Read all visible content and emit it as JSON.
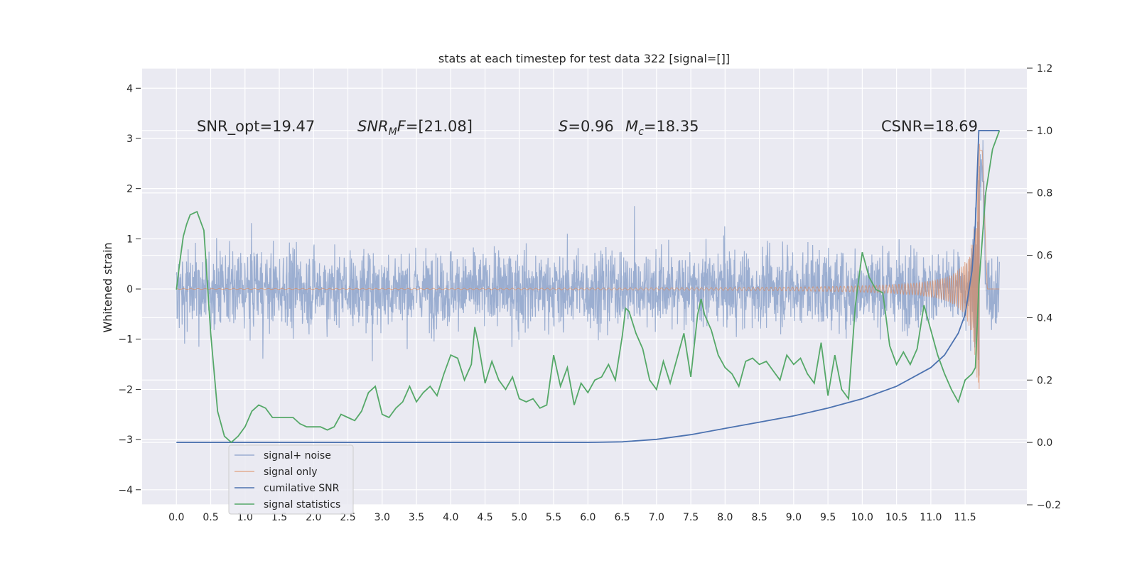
{
  "chart_data": {
    "type": "line",
    "title": "stats at each timestep for test data 322 [signal=[]]",
    "ylabel": "Whitened strain",
    "xlabel": "",
    "xlim": [
      -0.5,
      12.4
    ],
    "ylim": [
      -4.3,
      4.4
    ],
    "y2lim": [
      -0.2,
      1.2
    ],
    "grid": true,
    "legend_position": "lower-left",
    "x_ticks": [
      "0.0",
      "0.5",
      "1.0",
      "1.5",
      "2.0",
      "2.5",
      "3.0",
      "3.5",
      "4.0",
      "4.5",
      "5.0",
      "5.5",
      "6.0",
      "6.5",
      "7.0",
      "7.5",
      "8.0",
      "8.5",
      "9.0",
      "9.5",
      "10.0",
      "10.5",
      "11.0",
      "11.5"
    ],
    "y_ticks": [
      "4",
      "3",
      "2",
      "1",
      "0",
      "−1",
      "−2",
      "−3",
      "−4"
    ],
    "y2_ticks": [
      "1.2",
      "1.0",
      "0.8",
      "0.6",
      "0.4",
      "0.2",
      "0.0",
      "−0.2"
    ],
    "colors": {
      "noise": "#4c72b0",
      "signal": "#dd8452",
      "csnr": "#4c72b0",
      "stats": "#55a868"
    },
    "annotations": [
      {
        "id": "snr-opt",
        "text": "SNR_opt=19.47"
      },
      {
        "id": "snr-mf",
        "text": "=[21.08]",
        "prefix": "SNR",
        "sub": "M",
        "mid": "F"
      },
      {
        "id": "s",
        "text": "=0.96",
        "prefix": "S"
      },
      {
        "id": "mc",
        "text": "=18.35",
        "prefix": "M",
        "sub": "c"
      },
      {
        "id": "csnr",
        "text": "CSNR=18.69"
      }
    ],
    "series": [
      {
        "name": "signal+ noise",
        "color": "#4c72b0",
        "alpha": 0.5,
        "amplitude": 1.4,
        "x_range": [
          0,
          12
        ]
      },
      {
        "name": "signal only",
        "color": "#dd8452",
        "alpha": 0.6,
        "x_range": [
          0,
          12
        ]
      },
      {
        "name": "cumilative SNR",
        "color": "#4c72b0",
        "axis": "right",
        "x": [
          0,
          5,
          6,
          6.5,
          7.0,
          7.5,
          8.0,
          8.5,
          9.0,
          9.5,
          10.0,
          10.5,
          11.0,
          11.2,
          11.4,
          11.5,
          11.6,
          11.65,
          11.7,
          12.0
        ],
        "y": [
          0,
          0,
          0,
          0.002,
          0.01,
          0.025,
          0.045,
          0.065,
          0.085,
          0.11,
          0.14,
          0.18,
          0.24,
          0.28,
          0.35,
          0.41,
          0.55,
          0.7,
          1.0,
          1.0
        ]
      },
      {
        "name": "signal statistics",
        "color": "#55a868",
        "axis": "right",
        "x": [
          0,
          0.05,
          0.1,
          0.15,
          0.2,
          0.3,
          0.4,
          0.5,
          0.6,
          0.7,
          0.8,
          0.9,
          1.0,
          1.1,
          1.2,
          1.3,
          1.4,
          1.5,
          1.6,
          1.7,
          1.8,
          1.9,
          2.0,
          2.1,
          2.2,
          2.3,
          2.4,
          2.5,
          2.6,
          2.7,
          2.8,
          2.9,
          3.0,
          3.1,
          3.2,
          3.3,
          3.4,
          3.5,
          3.6,
          3.7,
          3.8,
          3.9,
          4.0,
          4.1,
          4.2,
          4.3,
          4.35,
          4.4,
          4.5,
          4.6,
          4.7,
          4.8,
          4.9,
          5.0,
          5.1,
          5.2,
          5.3,
          5.4,
          5.5,
          5.6,
          5.7,
          5.8,
          5.9,
          6.0,
          6.1,
          6.2,
          6.3,
          6.4,
          6.5,
          6.55,
          6.6,
          6.7,
          6.8,
          6.9,
          7.0,
          7.1,
          7.2,
          7.3,
          7.4,
          7.5,
          7.6,
          7.65,
          7.7,
          7.8,
          7.9,
          8.0,
          8.1,
          8.2,
          8.3,
          8.4,
          8.5,
          8.6,
          8.7,
          8.8,
          8.9,
          9.0,
          9.1,
          9.2,
          9.3,
          9.4,
          9.5,
          9.6,
          9.7,
          9.8,
          9.9,
          10.0,
          10.1,
          10.2,
          10.3,
          10.4,
          10.5,
          10.6,
          10.7,
          10.8,
          10.9,
          11.0,
          11.1,
          11.2,
          11.3,
          11.4,
          11.5,
          11.6,
          11.65,
          11.7,
          11.8,
          11.9,
          12.0
        ],
        "y": [
          0.49,
          0.58,
          0.66,
          0.7,
          0.73,
          0.74,
          0.68,
          0.35,
          0.1,
          0.02,
          0.0,
          0.02,
          0.05,
          0.1,
          0.12,
          0.11,
          0.08,
          0.08,
          0.08,
          0.08,
          0.06,
          0.05,
          0.05,
          0.05,
          0.04,
          0.05,
          0.09,
          0.08,
          0.07,
          0.1,
          0.16,
          0.18,
          0.09,
          0.08,
          0.11,
          0.13,
          0.18,
          0.13,
          0.16,
          0.18,
          0.15,
          0.22,
          0.28,
          0.27,
          0.2,
          0.25,
          0.37,
          0.32,
          0.19,
          0.26,
          0.2,
          0.17,
          0.21,
          0.14,
          0.13,
          0.14,
          0.11,
          0.12,
          0.28,
          0.18,
          0.24,
          0.12,
          0.19,
          0.16,
          0.2,
          0.21,
          0.25,
          0.2,
          0.34,
          0.43,
          0.42,
          0.35,
          0.3,
          0.2,
          0.17,
          0.26,
          0.19,
          0.27,
          0.35,
          0.21,
          0.41,
          0.46,
          0.41,
          0.36,
          0.28,
          0.24,
          0.22,
          0.18,
          0.26,
          0.27,
          0.25,
          0.26,
          0.23,
          0.2,
          0.28,
          0.25,
          0.27,
          0.22,
          0.19,
          0.32,
          0.15,
          0.28,
          0.17,
          0.14,
          0.44,
          0.61,
          0.53,
          0.49,
          0.48,
          0.31,
          0.25,
          0.29,
          0.25,
          0.3,
          0.44,
          0.36,
          0.28,
          0.22,
          0.17,
          0.13,
          0.2,
          0.22,
          0.24,
          0.5,
          0.8,
          0.94,
          1.0
        ]
      }
    ]
  }
}
